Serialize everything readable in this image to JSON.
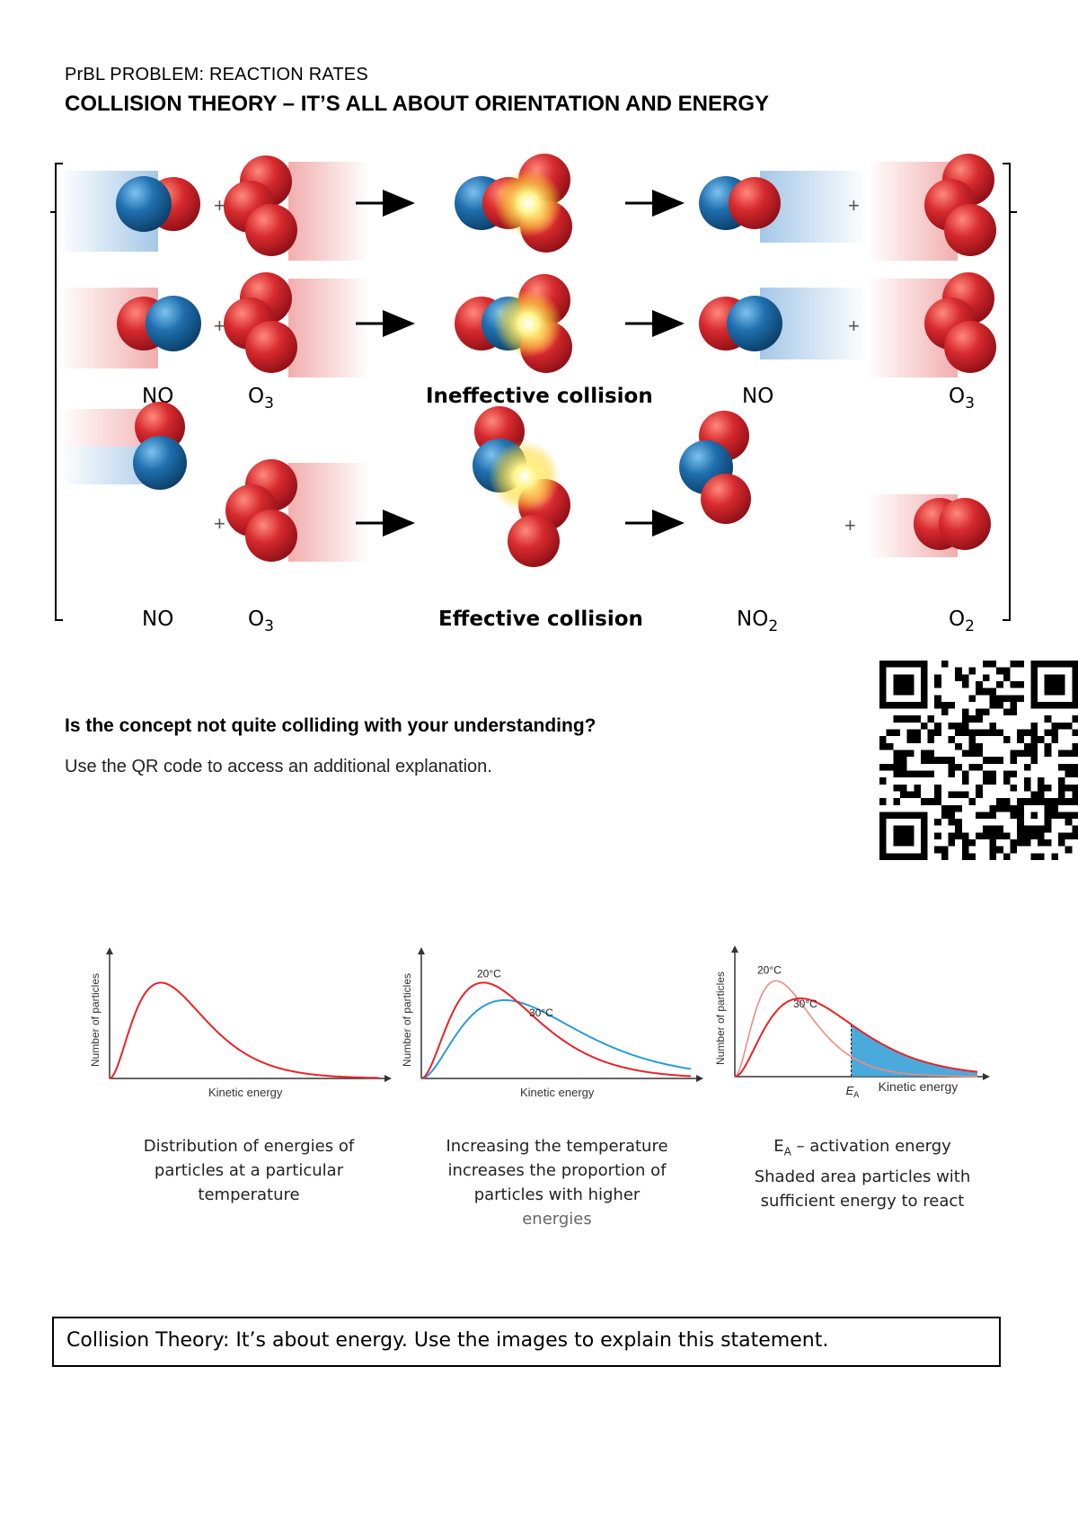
{
  "header": {
    "subtitle": "PrBL PROBLEM: REACTION RATES",
    "title": "COLLISION THEORY – IT’S ALL ABOUT ORIENTATION AND ENERGY"
  },
  "collision_diagram": {
    "plus": "+",
    "row_labels_ineffective": [
      "NO",
      "O3",
      "Ineffective collision",
      "NO",
      "O3"
    ],
    "row_labels_effective": [
      "NO",
      "O3",
      "Effective collision",
      "NO2",
      "O2"
    ],
    "colors": {
      "oxygen": "#d72a2e",
      "nitrogen": "#1f6fae",
      "flash": "#ffd93a"
    }
  },
  "qr_section": {
    "question": "Is the concept not quite colliding with your understanding?",
    "hint": "Use the QR code to access an additional explanation.",
    "icon": "qr-code-icon"
  },
  "chart_data": [
    {
      "type": "line",
      "xlabel": "Kinetic energy",
      "ylabel": "Number of particles",
      "series": [
        {
          "color": "#e8222a",
          "peak_x_fraction": 0.19,
          "peak_height_fraction": 0.82
        }
      ],
      "caption": "Distribution of energies of particles at a particular temperature"
    },
    {
      "type": "line",
      "xlabel": "Kinetic energy",
      "ylabel": "Number of particles",
      "series": [
        {
          "name": "20°C",
          "color": "#e8222a",
          "peak_x_fraction": 0.23,
          "peak_height_fraction": 0.82
        },
        {
          "name": "30°C",
          "color": "#2b9bd6",
          "peak_x_fraction": 0.31,
          "peak_height_fraction": 0.67
        }
      ],
      "caption": [
        "Increasing the temperature",
        "increases the proportion of",
        "particles with higher",
        "energies"
      ]
    },
    {
      "type": "area",
      "xlabel": "Kinetic energy",
      "ylabel": "Number of particles",
      "activation_label": "EA",
      "activation_x_fraction": 0.48,
      "series": [
        {
          "name": "20°C",
          "color": "#f08a80",
          "peak_x_fraction": 0.17,
          "peak_height_fraction": 0.82
        },
        {
          "name": "30°C",
          "color": "#e8222a",
          "peak_x_fraction": 0.27,
          "peak_height_fraction": 0.67
        }
      ],
      "shade_color": "#2b9bd6",
      "caption": [
        "E",
        "A",
        " – activation energy",
        "Shaded area    particles with",
        "sufficient energy to react"
      ]
    }
  ],
  "task": {
    "prompt": "Collision Theory: It’s about energy. Use the images to explain this statement."
  }
}
